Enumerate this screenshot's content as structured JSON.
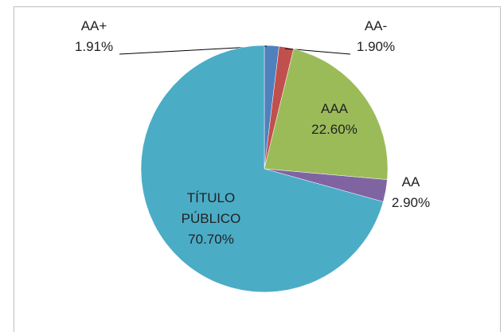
{
  "chart_data": {
    "type": "pie",
    "categories": [
      "AA+",
      "AA-",
      "AAA",
      "AA",
      "TÍTULO PÚBLICO"
    ],
    "values": [
      1.91,
      1.9,
      22.6,
      2.9,
      70.7
    ],
    "value_labels": [
      "1.91%",
      "1.90%",
      "22.60%",
      "2.90%",
      "70.70%"
    ],
    "colors": [
      "#4f81bd",
      "#c0504d",
      "#9bbb59",
      "#8064a2",
      "#4bacc6"
    ]
  }
}
